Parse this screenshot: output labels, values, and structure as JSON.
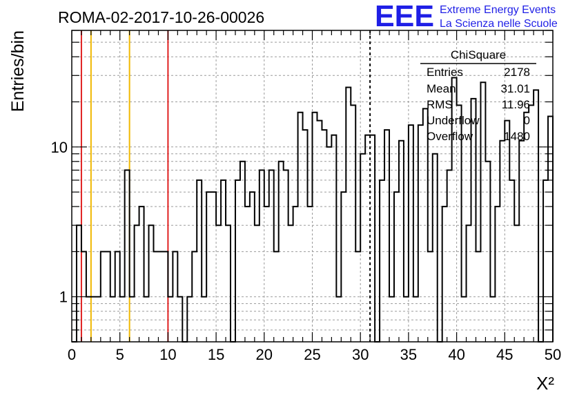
{
  "run_title": "ROMA-02-2017-10-26-00026",
  "logo": {
    "text": "EEE",
    "line1": "Extreme Energy Events",
    "line2": "La Scienza nelle Scuole",
    "color": "#1f1fe6"
  },
  "stats": {
    "title": "ChiSquare",
    "rows": [
      {
        "label": "Entries",
        "value": "2178"
      },
      {
        "label": "Mean",
        "value": "31.01"
      },
      {
        "label": "RMS",
        "value": "11.96"
      },
      {
        "label": "Underflow",
        "value": "0"
      },
      {
        "label": "Overflow",
        "value": "1480"
      }
    ]
  },
  "chart_data": {
    "type": "histogram",
    "title": "ROMA-02-2017-10-26-00026",
    "xlabel": "X²",
    "ylabel": "Entries/bin",
    "x_range": [
      0,
      50
    ],
    "y_scale": "log",
    "y_range": [
      0.5,
      60
    ],
    "grid": true,
    "bin_width": 0.5,
    "x_ticks": [
      0,
      5,
      10,
      15,
      20,
      25,
      30,
      35,
      40,
      45,
      50
    ],
    "x_tick_labels": [
      "0",
      "5",
      "10",
      "15",
      "20",
      "25",
      "30",
      "35",
      "40",
      "45",
      "50"
    ],
    "y_ticks": [
      1,
      10
    ],
    "y_tick_labels": [
      "1",
      "10"
    ],
    "counts": [
      0,
      3,
      2,
      1,
      1,
      1,
      2,
      2,
      1,
      2,
      1,
      7,
      1,
      3,
      4,
      1,
      3,
      2,
      2,
      2,
      1,
      2,
      1,
      0,
      1,
      2,
      6,
      1,
      5,
      5,
      3,
      6,
      3,
      0,
      6,
      8,
      4,
      5,
      3,
      7,
      4,
      7,
      2,
      8,
      7,
      3,
      4,
      17,
      13,
      4,
      17,
      15,
      13,
      10,
      12,
      1,
      5,
      25,
      19,
      2,
      9,
      12,
      12,
      0,
      6,
      13,
      1,
      5,
      11,
      1,
      14,
      1,
      14,
      18,
      2,
      9,
      0,
      4,
      7,
      29,
      19,
      1,
      3,
      21,
      2,
      27,
      8,
      1,
      4,
      11,
      15,
      6,
      3,
      11,
      17,
      19,
      24,
      0,
      6,
      16
    ],
    "vertical_lines": [
      {
        "x": 1,
        "color": "#e02020",
        "style": "solid"
      },
      {
        "x": 2,
        "color": "#f0b800",
        "style": "solid"
      },
      {
        "x": 6,
        "color": "#f0b800",
        "style": "solid"
      },
      {
        "x": 10,
        "color": "#e02020",
        "style": "solid"
      },
      {
        "x": 31,
        "color": "#000000",
        "style": "dashed"
      }
    ]
  }
}
